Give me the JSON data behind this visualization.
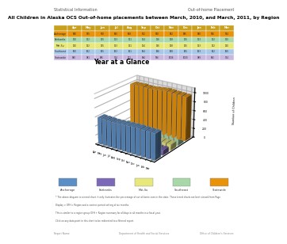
{
  "title": "All Children in Alaska OCS Out-of-home placements between March, 2010, and March, 2011, by Region",
  "chart_title": "Year at a Glance",
  "months": [
    "Apr",
    "May",
    "Jun",
    "Jul",
    "Aug",
    "Sep",
    "Oct",
    "Nov",
    "Dec",
    "Jan",
    "Feb",
    "Mar"
  ],
  "regions": [
    "Anchorage",
    "Fairbanks",
    "Mat-Su",
    "Southeast",
    "Statewide"
  ],
  "region_colors_3d": [
    "#5B8EC5",
    "#7B68B8",
    "#E8E87A",
    "#A8D8A8",
    "#E8930A"
  ],
  "table_row_colors": [
    "#E8930A",
    "#A8D8A8",
    "#E8E87A",
    "#A8C8E8",
    "#C8B8E0"
  ],
  "data": {
    "Anchorage": [
      580,
      575,
      570,
      565,
      568,
      572,
      578,
      582,
      585,
      580,
      576,
      574
    ],
    "Fairbanks": [
      110,
      112,
      115,
      113,
      111,
      114,
      116,
      118,
      115,
      113,
      112,
      110
    ],
    "Mat-Su": [
      130,
      132,
      135,
      133,
      131,
      134,
      136,
      138,
      135,
      133,
      132,
      130
    ],
    "Southeast": [
      160,
      162,
      165,
      163,
      161,
      164,
      166,
      168,
      165,
      163,
      162,
      160
    ],
    "Statewide": [
      980,
      981,
      985,
      974,
      971,
      984,
      996,
      1006,
      1000,
      989,
      982,
      974
    ]
  },
  "ylim": [
    0,
    1100
  ],
  "yticks": [
    0,
    200,
    400,
    600,
    800,
    1000
  ],
  "ylabel": "Number of Children",
  "legend_labels": [
    "Anchorage",
    "Fairbanks",
    "Mat-Su",
    "Southeast",
    "Statewide"
  ],
  "footer_text1": "* The above diagram is a trend chart. It only illustrates the percentage of out-of-home care in the state. These trend charts are best viewed from Page",
  "footer_text2": "Display > OFH > Region and a context period setting of six months.",
  "footer_text3": "This is similar to a region group OFH + Region summary for all days in all months in a fiscal year.",
  "footer_text4": "Click on any data point in this chart to be redirected to a filtered report.",
  "page_label_left": "Report Name",
  "page_label_center": "Department of Health and Social Services",
  "page_label_right": "Office of Children's Services",
  "header_label": "Statistical Information",
  "header_right": "Out-of-home Placement",
  "background": "#FFFFFF",
  "chart_border": "#CCCCCC",
  "legend_bg": "#DEDEDE",
  "table_header_color": "#C8A020",
  "chart_wall_color": "#AAAAAA"
}
